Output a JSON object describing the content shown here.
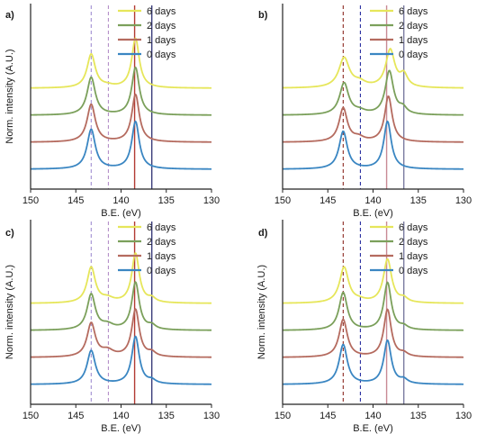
{
  "chart_data": [
    {
      "type": "line",
      "panel_label": "a)",
      "xlabel": "B.E. (eV)",
      "ylabel": "Norm. intensity (A.U.)",
      "xlim": [
        150,
        130
      ],
      "x_reversed": true,
      "xticks": [
        "150",
        "145",
        "140",
        "135",
        "130"
      ],
      "legend_position": "top-right",
      "series": [
        {
          "name": "6 days",
          "color": "#e6e65a",
          "offset": 3,
          "peaks": [
            {
              "center": 143.3,
              "height": 0.85,
              "width": 0.55
            },
            {
              "center": 138.4,
              "height": 1.25,
              "width": 0.5
            },
            {
              "center": 141.5,
              "height": 0.04,
              "width": 0.8
            }
          ]
        },
        {
          "name": "2 days",
          "color": "#7ba05b",
          "offset": 2,
          "peaks": [
            {
              "center": 143.3,
              "height": 0.95,
              "width": 0.55
            },
            {
              "center": 138.4,
              "height": 1.2,
              "width": 0.5
            }
          ]
        },
        {
          "name": "1 days",
          "color": "#b56b5f",
          "offset": 1,
          "peaks": [
            {
              "center": 143.3,
              "height": 0.95,
              "width": 0.55
            },
            {
              "center": 138.4,
              "height": 1.2,
              "width": 0.5
            }
          ]
        },
        {
          "name": "0 days",
          "color": "#3a86c2",
          "offset": 0,
          "peaks": [
            {
              "center": 143.3,
              "height": 1.0,
              "width": 0.55
            },
            {
              "center": 138.4,
              "height": 1.2,
              "width": 0.5
            }
          ]
        }
      ],
      "reference_lines": [
        {
          "x": 143.3,
          "color": "#a18fd2",
          "style": "dashed"
        },
        {
          "x": 141.4,
          "color": "#b58fc9",
          "style": "dashed"
        },
        {
          "x": 138.5,
          "color": "#b23a32",
          "style": "solid"
        },
        {
          "x": 136.6,
          "color": "#3a3c7a",
          "style": "solid"
        }
      ]
    },
    {
      "type": "line",
      "panel_label": "b)",
      "xlabel": "B.E. (eV)",
      "ylabel": "",
      "xlim": [
        150,
        130
      ],
      "x_reversed": true,
      "xticks": [
        "150",
        "145",
        "140",
        "135",
        "130"
      ],
      "legend_position": "top-right",
      "series": [
        {
          "name": "6 days",
          "color": "#e6e65a",
          "offset": 3,
          "peaks": [
            {
              "center": 143.2,
              "height": 0.75,
              "width": 0.7
            },
            {
              "center": 141.5,
              "height": 0.12,
              "width": 0.8
            },
            {
              "center": 138.1,
              "height": 0.95,
              "width": 0.6
            },
            {
              "center": 136.6,
              "height": 0.3,
              "width": 0.5
            }
          ]
        },
        {
          "name": "2 days",
          "color": "#7ba05b",
          "offset": 2,
          "peaks": [
            {
              "center": 143.2,
              "height": 0.8,
              "width": 0.6
            },
            {
              "center": 141.5,
              "height": 0.08,
              "width": 0.8
            },
            {
              "center": 138.2,
              "height": 1.1,
              "width": 0.55
            },
            {
              "center": 136.7,
              "height": 0.15,
              "width": 0.5
            }
          ]
        },
        {
          "name": "1 days",
          "color": "#b56b5f",
          "offset": 1,
          "peaks": [
            {
              "center": 143.3,
              "height": 0.85,
              "width": 0.55
            },
            {
              "center": 141.6,
              "height": 0.1,
              "width": 0.7
            },
            {
              "center": 138.3,
              "height": 1.15,
              "width": 0.5
            }
          ]
        },
        {
          "name": "0 days",
          "color": "#3a86c2",
          "offset": 0,
          "peaks": [
            {
              "center": 143.3,
              "height": 0.95,
              "width": 0.55
            },
            {
              "center": 138.4,
              "height": 1.2,
              "width": 0.5
            }
          ]
        }
      ],
      "reference_lines": [
        {
          "x": 143.3,
          "color": "#8c2a22",
          "style": "dashed"
        },
        {
          "x": 141.4,
          "color": "#2a2fa0",
          "style": "dashed"
        },
        {
          "x": 138.5,
          "color": "#c98a94",
          "style": "solid"
        },
        {
          "x": 136.6,
          "color": "#7a7ca0",
          "style": "solid"
        }
      ]
    },
    {
      "type": "line",
      "panel_label": "c)",
      "xlabel": "B.E. (eV)",
      "ylabel": "Norm. intensity (A.U.)",
      "xlim": [
        150,
        130
      ],
      "x_reversed": true,
      "xticks": [
        "150",
        "145",
        "140",
        "135",
        "130"
      ],
      "legend_position": "top-right",
      "series": [
        {
          "name": "6 days",
          "color": "#e6e65a",
          "offset": 3,
          "peaks": [
            {
              "center": 143.3,
              "height": 0.9,
              "width": 0.55
            },
            {
              "center": 141.5,
              "height": 0.1,
              "width": 0.8
            },
            {
              "center": 138.4,
              "height": 1.25,
              "width": 0.5
            },
            {
              "center": 136.6,
              "height": 0.1,
              "width": 0.5
            }
          ]
        },
        {
          "name": "2 days",
          "color": "#7ba05b",
          "offset": 2,
          "peaks": [
            {
              "center": 143.3,
              "height": 0.9,
              "width": 0.55
            },
            {
              "center": 141.5,
              "height": 0.12,
              "width": 0.8
            },
            {
              "center": 138.4,
              "height": 1.2,
              "width": 0.5
            },
            {
              "center": 136.6,
              "height": 0.1,
              "width": 0.5
            }
          ]
        },
        {
          "name": "1 days",
          "color": "#b56b5f",
          "offset": 1,
          "peaks": [
            {
              "center": 143.3,
              "height": 0.85,
              "width": 0.55
            },
            {
              "center": 141.5,
              "height": 0.15,
              "width": 0.8
            },
            {
              "center": 138.4,
              "height": 1.2,
              "width": 0.5
            },
            {
              "center": 136.6,
              "height": 0.1,
              "width": 0.5
            }
          ]
        },
        {
          "name": "0 days",
          "color": "#3a86c2",
          "offset": 0,
          "peaks": [
            {
              "center": 143.3,
              "height": 0.85,
              "width": 0.55
            },
            {
              "center": 138.4,
              "height": 1.2,
              "width": 0.5
            },
            {
              "center": 136.6,
              "height": 0.08,
              "width": 0.5
            }
          ]
        }
      ],
      "reference_lines": [
        {
          "x": 143.3,
          "color": "#a18fd2",
          "style": "dashed"
        },
        {
          "x": 141.4,
          "color": "#b58fc9",
          "style": "dashed"
        },
        {
          "x": 138.5,
          "color": "#b23a32",
          "style": "solid"
        },
        {
          "x": 136.6,
          "color": "#3a3c7a",
          "style": "solid"
        }
      ]
    },
    {
      "type": "line",
      "panel_label": "d)",
      "xlabel": "B.E. (eV)",
      "ylabel": "Norm. intensity (A.U.)",
      "xlim": [
        150,
        130
      ],
      "x_reversed": true,
      "xticks": [
        "150",
        "145",
        "140",
        "135",
        "130"
      ],
      "legend_position": "top-right",
      "series": [
        {
          "name": "6 days",
          "color": "#e6e65a",
          "offset": 3,
          "peaks": [
            {
              "center": 143.2,
              "height": 0.9,
              "width": 0.6
            },
            {
              "center": 141.5,
              "height": 0.05,
              "width": 0.8
            },
            {
              "center": 138.4,
              "height": 1.1,
              "width": 0.55
            },
            {
              "center": 136.6,
              "height": 0.1,
              "width": 0.5
            }
          ]
        },
        {
          "name": "2 days",
          "color": "#7ba05b",
          "offset": 2,
          "peaks": [
            {
              "center": 143.3,
              "height": 0.95,
              "width": 0.55
            },
            {
              "center": 138.4,
              "height": 1.2,
              "width": 0.5
            },
            {
              "center": 136.6,
              "height": 0.08,
              "width": 0.5
            }
          ]
        },
        {
          "name": "1 days",
          "color": "#b56b5f",
          "offset": 1,
          "peaks": [
            {
              "center": 143.3,
              "height": 0.95,
              "width": 0.55
            },
            {
              "center": 138.4,
              "height": 1.2,
              "width": 0.5
            },
            {
              "center": 136.6,
              "height": 0.08,
              "width": 0.5
            }
          ]
        },
        {
          "name": "0 days",
          "color": "#3a86c2",
          "offset": 0,
          "peaks": [
            {
              "center": 143.3,
              "height": 1.0,
              "width": 0.55
            },
            {
              "center": 138.4,
              "height": 1.1,
              "width": 0.5
            },
            {
              "center": 136.6,
              "height": 0.1,
              "width": 0.5
            }
          ]
        }
      ],
      "reference_lines": [
        {
          "x": 143.3,
          "color": "#8c2a22",
          "style": "dashed"
        },
        {
          "x": 141.4,
          "color": "#2a2fa0",
          "style": "dashed"
        },
        {
          "x": 138.5,
          "color": "#c98a94",
          "style": "solid"
        },
        {
          "x": 136.6,
          "color": "#7a7ca0",
          "style": "solid"
        }
      ]
    }
  ]
}
